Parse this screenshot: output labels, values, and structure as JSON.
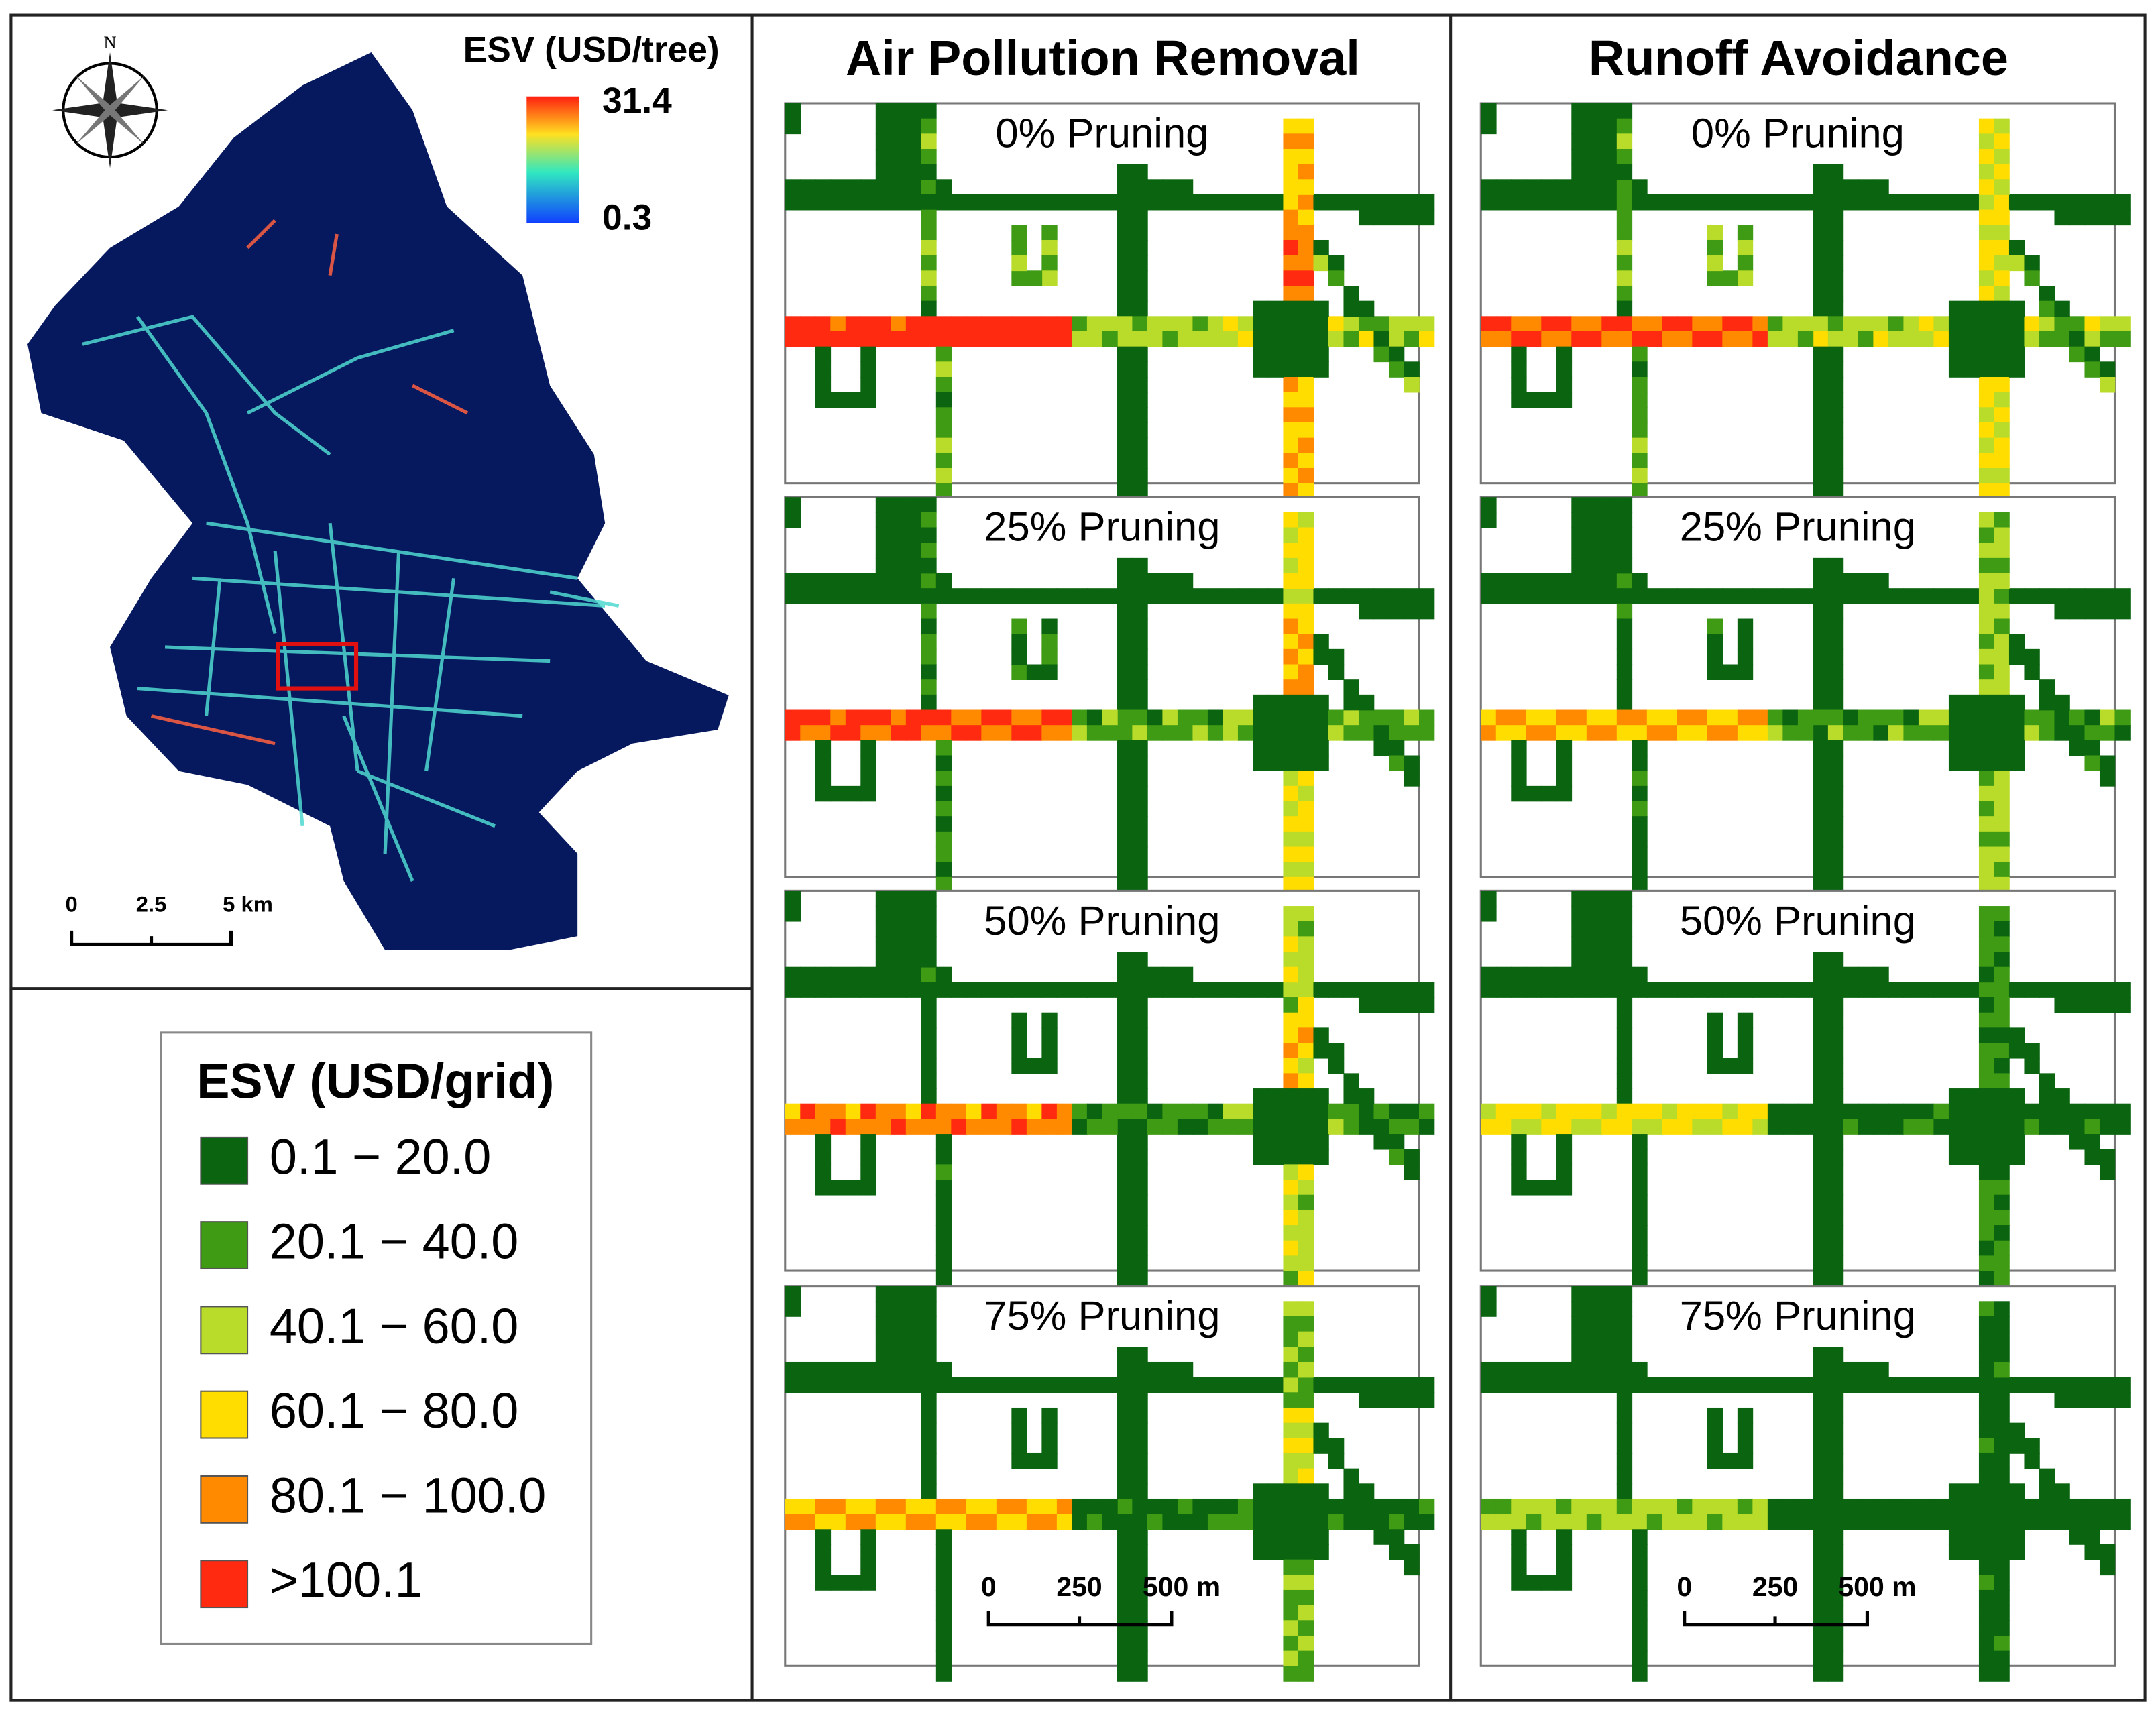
{
  "overview_map": {
    "legend_title": "ESV (USD/tree)",
    "legend_max": "31.4",
    "legend_min": "0.3",
    "north": "N",
    "scale_labels": [
      "0",
      "2.5",
      "5 km"
    ]
  },
  "grid_legend": {
    "title": "ESV (USD/grid)",
    "classes": [
      {
        "label": "0.1 − 20.0",
        "color": "#0a6410"
      },
      {
        "label": "20.1 − 40.0",
        "color": "#3f9a14"
      },
      {
        "label": "40.1 − 60.0",
        "color": "#b9dc2a"
      },
      {
        "label": "60.1 − 80.0",
        "color": "#ffdd00"
      },
      {
        "label": "80.1 − 100.0",
        "color": "#ff8a00"
      },
      {
        "label": ">100.1",
        "color": "#ff2a10"
      }
    ]
  },
  "columns": [
    {
      "title": "Air Pollution Removal",
      "panels": [
        "0% Pruning",
        "25% Pruning",
        "50% Pruning",
        "75% Pruning"
      ],
      "scale_labels": [
        "0",
        "250",
        "500 m"
      ]
    },
    {
      "title": "Runoff Avoidance",
      "panels": [
        "0% Pruning",
        "25% Pruning",
        "50% Pruning",
        "75% Pruning"
      ],
      "scale_labels": [
        "0",
        "250",
        "500 m"
      ]
    }
  ]
}
